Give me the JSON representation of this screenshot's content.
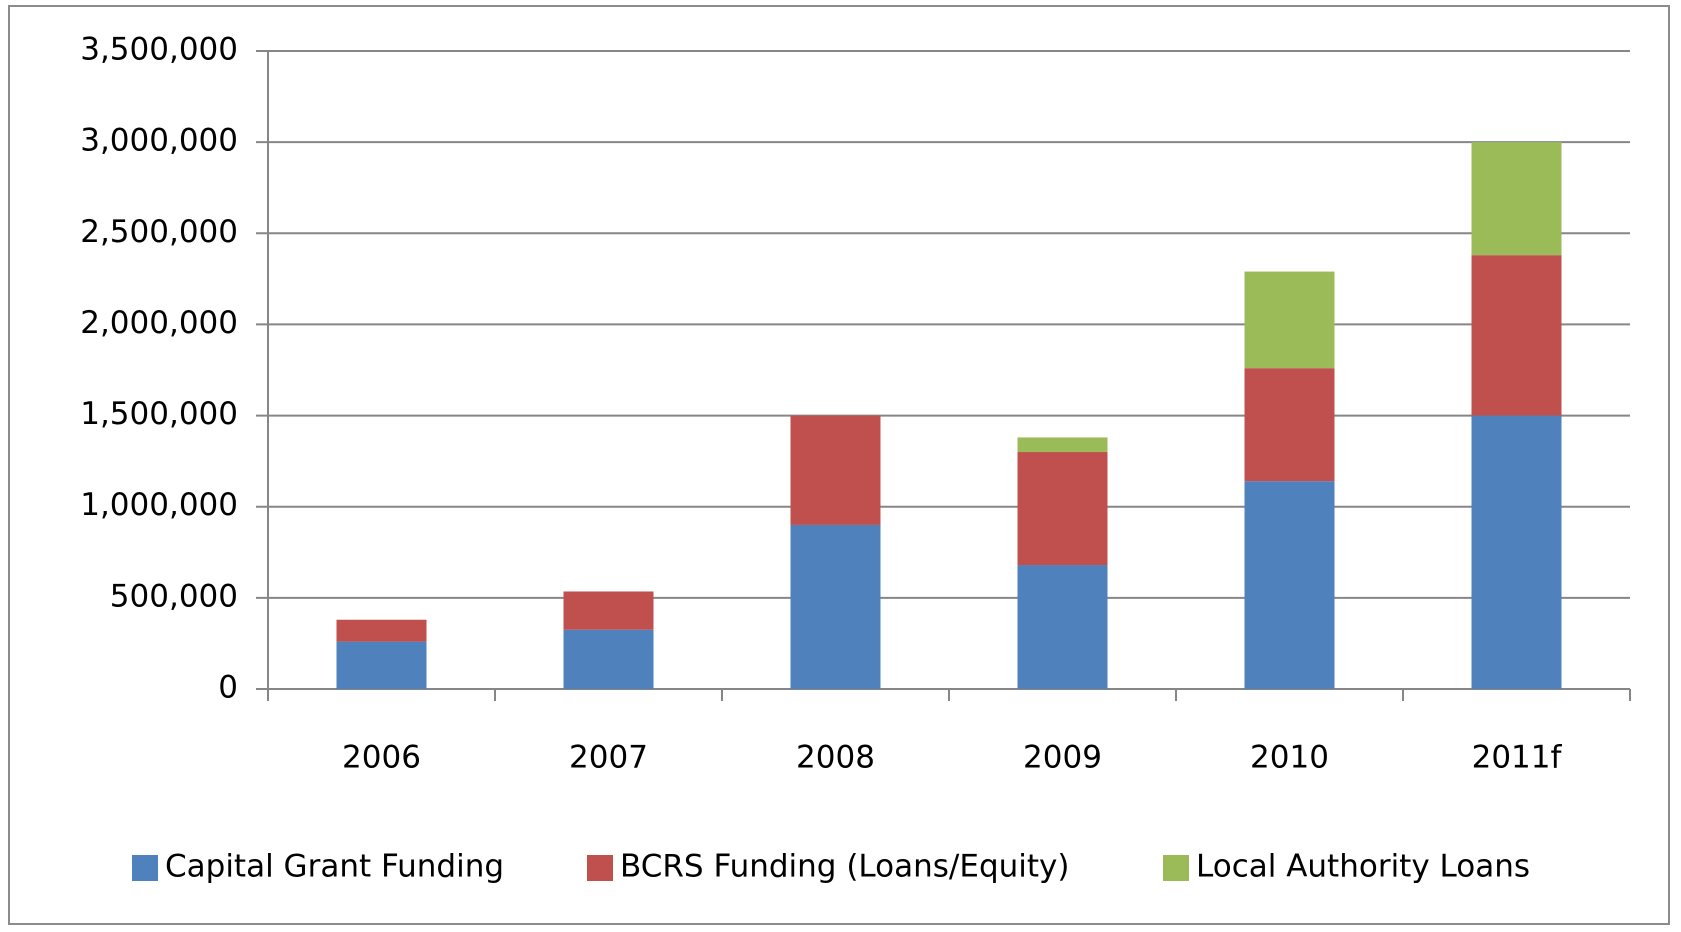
{
  "chart_data": {
    "type": "stacked_bar",
    "categories": [
      "2006",
      "2007",
      "2008",
      "2009",
      "2010",
      "2011f"
    ],
    "series": [
      {
        "name": "Capital Grant Funding",
        "color": "#4f81bd",
        "values": [
          260000,
          325000,
          900000,
          680000,
          1140000,
          1500000
        ]
      },
      {
        "name": "BCRS Funding (Loans/Equity)",
        "color": "#c0504d",
        "values": [
          120000,
          210000,
          600000,
          620000,
          620000,
          880000
        ]
      },
      {
        "name": "Local Authority Loans",
        "color": "#9bbb59",
        "values": [
          0,
          0,
          0,
          80000,
          530000,
          620000
        ]
      }
    ],
    "ylim": [
      0,
      3500000
    ],
    "yticks": [
      {
        "value": 0,
        "label": "0"
      },
      {
        "value": 500000,
        "label": "500,000"
      },
      {
        "value": 1000000,
        "label": "1,000,000"
      },
      {
        "value": 1500000,
        "label": "1,500,000"
      },
      {
        "value": 2000000,
        "label": "2,000,000"
      },
      {
        "value": 2500000,
        "label": "2,500,000"
      },
      {
        "value": 3000000,
        "label": "3,000,000"
      },
      {
        "value": 3500000,
        "label": "3,500,000"
      }
    ],
    "grid": true,
    "legend": "bottom"
  }
}
